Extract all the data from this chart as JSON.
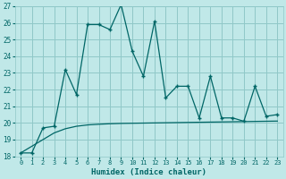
{
  "xlabel": "Humidex (Indice chaleur)",
  "bg_color": "#c0e8e8",
  "grid_color": "#90c8c8",
  "line_color": "#006666",
  "x": [
    0,
    1,
    2,
    3,
    4,
    5,
    6,
    7,
    8,
    9,
    10,
    11,
    12,
    13,
    14,
    15,
    16,
    17,
    18,
    19,
    20,
    21,
    22,
    23
  ],
  "y_main": [
    18.2,
    18.2,
    19.7,
    19.8,
    23.2,
    21.7,
    25.9,
    25.9,
    25.6,
    27.1,
    24.3,
    22.8,
    26.1,
    21.5,
    22.2,
    22.2,
    20.3,
    22.8,
    20.3,
    20.3,
    20.1,
    22.2,
    20.4,
    20.5
  ],
  "y_smooth": [
    18.2,
    18.6,
    19.0,
    19.4,
    19.65,
    19.8,
    19.88,
    19.92,
    19.95,
    19.97,
    19.98,
    19.99,
    20.0,
    20.01,
    20.02,
    20.03,
    20.04,
    20.05,
    20.06,
    20.07,
    20.08,
    20.09,
    20.1,
    20.11
  ],
  "ylim": [
    18,
    27
  ],
  "xlim": [
    -0.5,
    23.5
  ],
  "yticks": [
    18,
    19,
    20,
    21,
    22,
    23,
    24,
    25,
    26,
    27
  ],
  "xticks": [
    0,
    1,
    2,
    3,
    4,
    5,
    6,
    7,
    8,
    9,
    10,
    11,
    12,
    13,
    14,
    15,
    16,
    17,
    18,
    19,
    20,
    21,
    22,
    23
  ]
}
